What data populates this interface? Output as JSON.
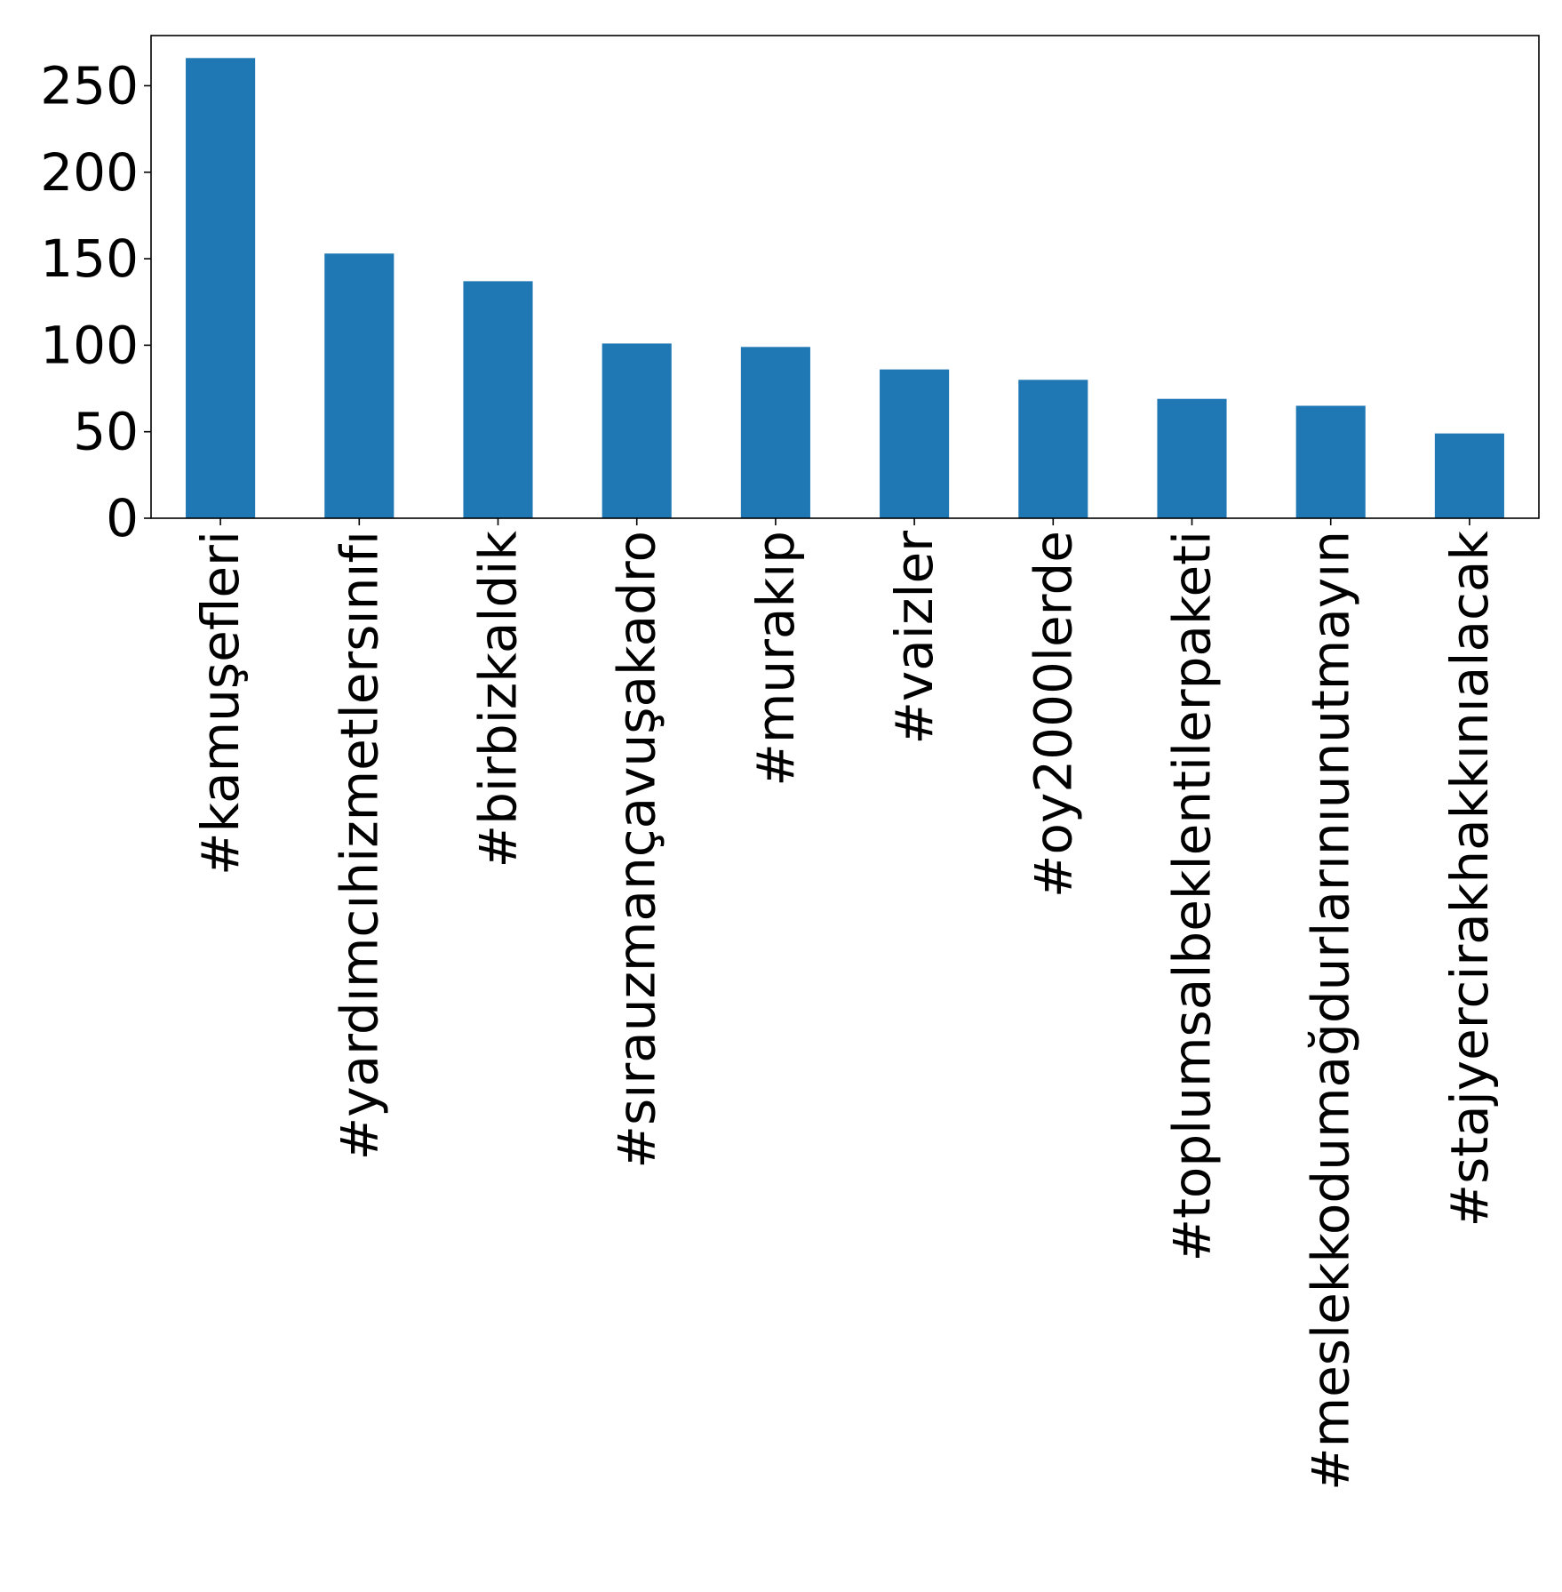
{
  "chart_data": {
    "type": "bar",
    "title": "",
    "xlabel": "",
    "ylabel": "",
    "categories": [
      "#kamuşefleri",
      "#yardımcıhizmetlersınıfı",
      "#birbizkaldik",
      "#sırauzmançavuşakadro",
      "#murakıp",
      "#vaizler",
      "#oy2000lerde",
      "#toplumsalbeklentilerpaketi",
      "#meslekkodumağdurlarınıunutmayın",
      "#stajyercirakhakkınıalacak"
    ],
    "values": [
      266,
      153,
      137,
      101,
      99,
      86,
      80,
      69,
      65,
      49
    ],
    "ylim": [
      0,
      279
    ],
    "yticks": [
      0,
      50,
      100,
      150,
      200,
      250
    ],
    "ytick_labels": [
      "0",
      "50",
      "100",
      "150",
      "200",
      "250"
    ],
    "grid": false,
    "legend": "none",
    "bar_color": "#1f77b4"
  }
}
